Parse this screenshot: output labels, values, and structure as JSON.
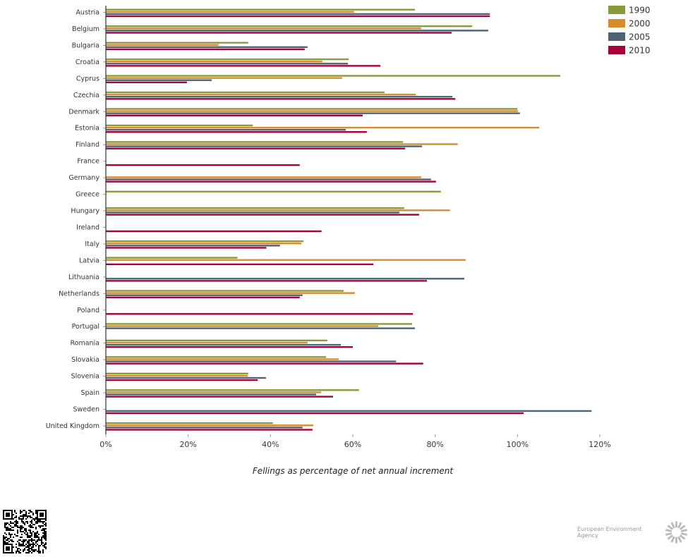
{
  "chart_data": {
    "type": "bar",
    "orientation": "horizontal",
    "xlabel": "Fellings as percentage of net annual increment",
    "xlim": [
      0,
      120
    ],
    "xticks": [
      "0%",
      "20%",
      "40%",
      "60%",
      "80%",
      "100%",
      "120%"
    ],
    "legend_position": "top-right",
    "categories": [
      "Austria",
      "Belgium",
      "Bulgaria",
      "Croatia",
      "Cyprus",
      "Czechia",
      "Denmark",
      "Estonia",
      "Finland",
      "France",
      "Germany",
      "Greece",
      "Hungary",
      "Ireland",
      "Italy",
      "Latvia",
      "Lithuania",
      "Netherlands",
      "Poland",
      "Portugal",
      "Romania",
      "Slovakia",
      "Slovenia",
      "Spain",
      "Sweden",
      "United Kingdom"
    ],
    "series": [
      {
        "name": "1990",
        "color": "#8a9a3a",
        "values": [
          75.1,
          89.0,
          34.6,
          59.0,
          110.4,
          67.7,
          100.0,
          35.7,
          72.2,
          null,
          null,
          81.4,
          72.5,
          null,
          48.0,
          32.0,
          null,
          57.8,
          null,
          74.4,
          53.8,
          53.5,
          34.6,
          61.5,
          null,
          40.6
        ]
      },
      {
        "name": "2000",
        "color": "#d98a2b",
        "values": [
          60.3,
          76.6,
          27.4,
          52.6,
          57.4,
          75.3,
          100.1,
          105.3,
          85.5,
          null,
          76.6,
          null,
          83.6,
          null,
          47.5,
          87.4,
          null,
          60.5,
          null,
          66.2,
          49.0,
          56.6,
          34.5,
          52.3,
          null,
          50.4
        ]
      },
      {
        "name": "2005",
        "color": "#4d6478",
        "values": [
          93.3,
          92.9,
          49.0,
          58.8,
          25.7,
          84.2,
          100.6,
          58.3,
          76.8,
          null,
          79.0,
          null,
          71.3,
          null,
          42.3,
          null,
          87.1,
          47.8,
          null,
          75.1,
          57.1,
          70.5,
          38.9,
          51.1,
          118.0,
          47.8
        ]
      },
      {
        "name": "2010",
        "color": "#a8003a",
        "values": [
          93.3,
          84.0,
          48.3,
          66.7,
          19.7,
          84.9,
          62.4,
          63.4,
          72.7,
          47.1,
          80.2,
          null,
          76.1,
          52.4,
          39.0,
          65.0,
          78.0,
          47.1,
          74.6,
          null,
          60.0,
          77.1,
          36.9,
          55.2,
          101.5,
          50.2
        ]
      }
    ]
  },
  "footer": {
    "agency": "European Environment Agency"
  }
}
